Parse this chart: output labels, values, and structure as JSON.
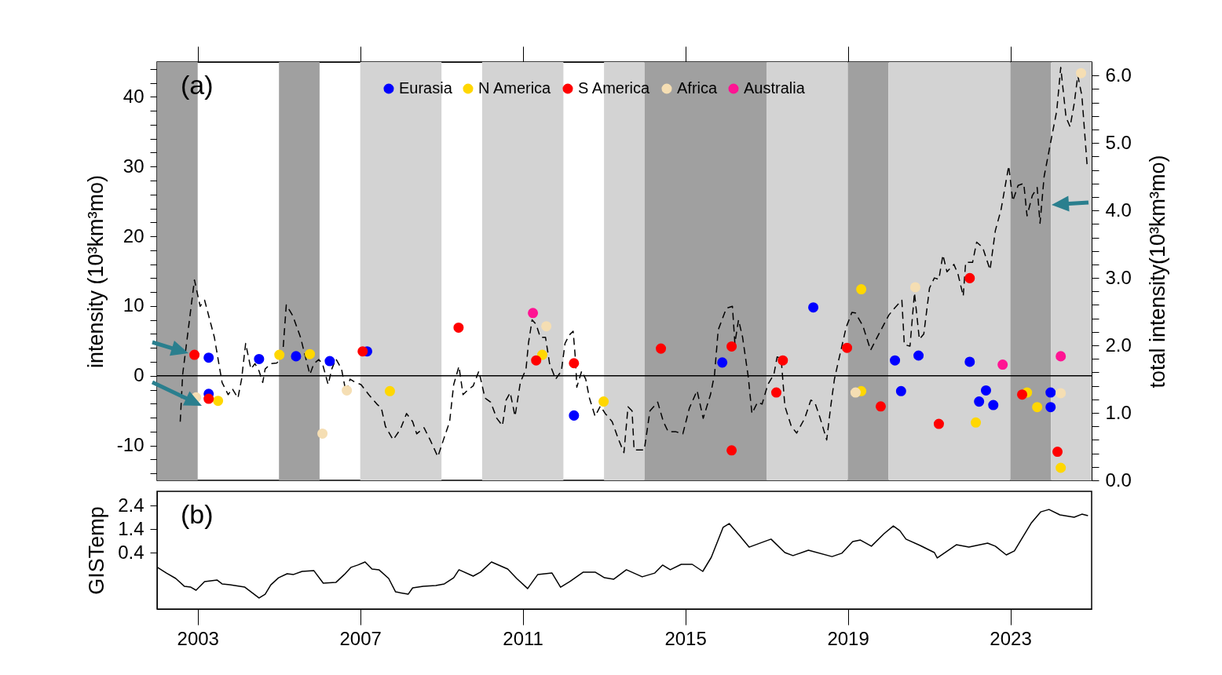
{
  "chart_data": [
    {
      "type": "scatter",
      "marker": "circle",
      "grid": false,
      "legend": "top",
      "tick_labels": "y",
      "ylabel": "intensity (10³km³mo)",
      "y2label": "total intensity(10³km³mo)",
      "annotations": [
        "(a)"
      ],
      "xlim": [
        2002,
        2025
      ],
      "xticks": [
        2003,
        2007,
        2011,
        2015,
        2019,
        2023
      ],
      "ylim": [
        -15,
        45
      ],
      "yticks": [
        {
          "value": -14,
          "label": null
        },
        {
          "value": -12,
          "label": null
        },
        -10,
        {
          "value": -8,
          "label": null
        },
        {
          "value": -6,
          "label": null
        },
        {
          "value": -4,
          "label": null
        },
        {
          "value": -2,
          "label": null
        },
        0,
        {
          "value": 2,
          "label": null
        },
        {
          "value": 4,
          "label": null
        },
        {
          "value": 6,
          "label": null
        },
        {
          "value": 8,
          "label": null
        },
        10,
        {
          "value": 12,
          "label": null
        },
        {
          "value": 14,
          "label": null
        },
        {
          "value": 16,
          "label": null
        },
        {
          "value": 18,
          "label": null
        },
        20,
        {
          "value": 22,
          "label": null
        },
        {
          "value": 24,
          "label": null
        },
        {
          "value": 26,
          "label": null
        },
        {
          "value": 28,
          "label": null
        },
        30,
        {
          "value": 32,
          "label": null
        },
        {
          "value": 34,
          "label": null
        },
        {
          "value": 36,
          "label": null
        },
        {
          "value": 38,
          "label": null
        },
        40,
        {
          "value": 42,
          "label": null
        },
        {
          "value": 44,
          "label": null
        }
      ],
      "y2lim": [
        0,
        6.2
      ],
      "y2ticks": [
        {
          "value": 0,
          "label": "0.0"
        },
        {
          "value": 0.2,
          "label": null
        },
        {
          "value": 0.4,
          "label": null
        },
        {
          "value": 0.6,
          "label": null
        },
        {
          "value": 0.8,
          "label": null
        },
        {
          "value": 1,
          "label": "1.0"
        },
        {
          "value": 1.2,
          "label": null
        },
        {
          "value": 1.4,
          "label": null
        },
        {
          "value": 1.6,
          "label": null
        },
        {
          "value": 1.8,
          "label": null
        },
        {
          "value": 2,
          "label": "2.0"
        },
        {
          "value": 2.2,
          "label": null
        },
        {
          "value": 2.4,
          "label": null
        },
        {
          "value": 2.6,
          "label": null
        },
        {
          "value": 2.8,
          "label": null
        },
        {
          "value": 3,
          "label": "3.0"
        },
        {
          "value": 3.2,
          "label": null
        },
        {
          "value": 3.4,
          "label": null
        },
        {
          "value": 3.6,
          "label": null
        },
        {
          "value": 3.8,
          "label": null
        },
        {
          "value": 4,
          "label": "4.0"
        },
        {
          "value": 4.2,
          "label": null
        },
        {
          "value": 4.4,
          "label": null
        },
        {
          "value": 4.6,
          "label": null
        },
        {
          "value": 4.8,
          "label": null
        },
        {
          "value": 5,
          "label": "5.0"
        },
        {
          "value": 5.2,
          "label": null
        },
        {
          "value": 5.4,
          "label": null
        },
        {
          "value": 5.6,
          "label": null
        },
        {
          "value": 5.8,
          "label": null
        },
        {
          "value": 6,
          "label": "6.0"
        }
      ],
      "bands": [
        {
          "axis": "x",
          "from": 2002,
          "to": 2003,
          "color": "#a0a0a0"
        },
        {
          "axis": "x",
          "from": 2005,
          "to": 2006,
          "color": "#a0a0a0"
        },
        {
          "axis": "x",
          "from": 2007,
          "to": 2009,
          "color": "#d3d3d3"
        },
        {
          "axis": "x",
          "from": 2010,
          "to": 2012,
          "color": "#d3d3d3"
        },
        {
          "axis": "x",
          "from": 2013,
          "to": 2014,
          "color": "#d3d3d3"
        },
        {
          "axis": "x",
          "from": 2014,
          "to": 2017,
          "color": "#a0a0a0"
        },
        {
          "axis": "x",
          "from": 2017,
          "to": 2019,
          "color": "#d3d3d3"
        },
        {
          "axis": "x",
          "from": 2019,
          "to": 2020,
          "color": "#a0a0a0"
        },
        {
          "axis": "x",
          "from": 2020,
          "to": 2023,
          "color": "#d3d3d3"
        },
        {
          "axis": "x",
          "from": 2023,
          "to": 2024,
          "color": "#a0a0a0"
        },
        {
          "axis": "x",
          "from": 2024,
          "to": 2025,
          "color": "#d3d3d3"
        }
      ],
      "ref_lines": [
        {
          "axis": "y",
          "value": 0,
          "color": "#000000"
        }
      ],
      "series": [
        {
          "type": "line",
          "axis": "y2",
          "color": "#000000",
          "line_style": "dashed",
          "marker": "none",
          "x": [
            2002.57,
            2002.63,
            2002.92,
            2003.06,
            2003.17,
            2003.41,
            2003.6,
            2003.75,
            2003.85,
            2003.99,
            2004.08,
            2004.18,
            2004.31,
            2004.41,
            2004.51,
            2004.6,
            2004.66,
            2004.8,
            2004.95,
            2005.09,
            2005.18,
            2005.34,
            2005.53,
            2005.76,
            2005.86,
            2005.98,
            2006.07,
            2006.21,
            2006.3,
            2006.4,
            2006.54,
            2006.65,
            2006.75,
            2006.88,
            2007.02,
            2007.21,
            2007.41,
            2007.52,
            2007.62,
            2007.81,
            2007.99,
            2008.14,
            2008.29,
            2008.39,
            2008.57,
            2008.72,
            2008.91,
            2009.07,
            2009.2,
            2009.3,
            2009.43,
            2009.53,
            2009.65,
            2009.78,
            2009.92,
            2010.07,
            2010.21,
            2010.36,
            2010.5,
            2010.59,
            2010.69,
            2010.81,
            2010.94,
            2011.08,
            2011.14,
            2011.23,
            2011.33,
            2011.43,
            2011.56,
            2011.66,
            2011.81,
            2011.95,
            2012.04,
            2012.14,
            2012.24,
            2012.3,
            2012.33,
            2012.45,
            2012.55,
            2012.64,
            2012.78,
            2012.91,
            2013.03,
            2013.2,
            2013.36,
            2013.49,
            2013.59,
            2013.69,
            2013.74,
            2013.99,
            2014.13,
            2014.32,
            2014.46,
            2014.58,
            2014.77,
            2014.94,
            2015.1,
            2015.29,
            2015.44,
            2015.62,
            2015.72,
            2015.81,
            2016.01,
            2016.16,
            2016.22,
            2016.31,
            2016.41,
            2016.55,
            2016.64,
            2016.78,
            2016.89,
            2017.03,
            2017.18,
            2017.26,
            2017.36,
            2017.45,
            2017.61,
            2017.74,
            2017.94,
            2018.09,
            2018.19,
            2018.32,
            2018.48,
            2018.58,
            2018.67,
            2018.77,
            2018.96,
            2019.1,
            2019.19,
            2019.37,
            2019.56,
            2019.73,
            2019.87,
            2020.01,
            2020.16,
            2020.33,
            2020.39,
            2020.53,
            2020.64,
            2020.76,
            2020.87,
            2021.01,
            2021.13,
            2021.24,
            2021.34,
            2021.44,
            2021.61,
            2021.71,
            2021.84,
            2021.9,
            2022.07,
            2022.17,
            2022.32,
            2022.5,
            2022.63,
            2022.77,
            2022.96,
            2023.06,
            2023.19,
            2023.33,
            2023.41,
            2023.54,
            2023.66,
            2023.73,
            2023.83,
            2024.02,
            2024.14,
            2024.24,
            2024.37,
            2024.47,
            2024.57,
            2024.66,
            2024.76,
            2024.89
          ],
          "values": [
            0.87,
            1.57,
            2.97,
            2.58,
            2.67,
            2.12,
            1.45,
            1.27,
            1.36,
            1.22,
            1.5,
            2.03,
            1.65,
            1.73,
            1.62,
            1.45,
            1.65,
            1.73,
            1.74,
            1.85,
            2.6,
            2.44,
            2.12,
            1.57,
            1.73,
            1.79,
            1.73,
            1.42,
            1.65,
            1.8,
            1.65,
            1.3,
            1.5,
            1.45,
            1.42,
            1.27,
            1.13,
            1.07,
            0.8,
            0.6,
            0.76,
            0.99,
            0.87,
            0.69,
            0.78,
            0.6,
            0.35,
            0.64,
            0.87,
            1.42,
            1.69,
            1.27,
            1.34,
            1.4,
            1.62,
            1.22,
            1.16,
            0.92,
            0.81,
            1.19,
            1.3,
            0.95,
            1.45,
            1.65,
            2.03,
            2.38,
            2.31,
            2.12,
            2.12,
            1.73,
            1.5,
            1.62,
            2.03,
            2.15,
            2.21,
            1.77,
            1.38,
            1.62,
            1.5,
            1.22,
            0.95,
            1.1,
            0.99,
            0.87,
            0.6,
            0.41,
            1.09,
            1.03,
            0.45,
            0.45,
            1.03,
            1.16,
            0.87,
            0.72,
            0.72,
            0.69,
            1.07,
            1.33,
            0.92,
            1.27,
            1.57,
            2.23,
            2.55,
            2.58,
            2.03,
            2.38,
            2.12,
            1.53,
            0.99,
            1.16,
            1.13,
            1.42,
            1.57,
            1.83,
            1.8,
            1.1,
            0.8,
            0.7,
            0.92,
            1.19,
            1.15,
            0.92,
            0.6,
            1.1,
            1.5,
            1.77,
            2.27,
            2.49,
            2.48,
            2.29,
            1.93,
            2.13,
            2.29,
            2.45,
            2.56,
            2.67,
            2.01,
            1.99,
            2.78,
            2.09,
            2.17,
            2.85,
            3.0,
            2.98,
            3.34,
            3.09,
            3.2,
            3.06,
            2.73,
            3.23,
            3.23,
            3.53,
            3.45,
            3.12,
            3.7,
            4.01,
            4.66,
            4.14,
            4.37,
            4.4,
            3.92,
            4.22,
            4.34,
            3.81,
            4.5,
            5.1,
            5.47,
            6.12,
            5.38,
            5.24,
            5.58,
            6.0,
            5.7,
            4.66
          ]
        },
        {
          "name": "Eurasia",
          "color": "#0000ff",
          "x": [
            2003.27,
            2003.27,
            2004.51,
            2005.42,
            2006.25,
            2007.17,
            2012.26,
            2015.91,
            2018.15,
            2020.16,
            2020.31,
            2020.74,
            2022.0,
            2022.23,
            2022.4,
            2022.58,
            2023.99,
            2023.99
          ],
          "values": [
            2.6,
            -2.6,
            2.4,
            2.8,
            2.1,
            3.5,
            -5.7,
            1.9,
            9.8,
            2.2,
            -2.2,
            2.9,
            2.0,
            -3.7,
            -2.1,
            -4.2,
            -2.4,
            -4.5
          ]
        },
        {
          "name": "N America",
          "color": "#ffd700",
          "x": [
            2003.5,
            2005.01,
            2005.76,
            2007.73,
            2011.48,
            2012.99,
            2019.33,
            2019.33,
            2022.15,
            2023.41,
            2023.66,
            2024.24
          ],
          "values": [
            -3.6,
            3.0,
            3.1,
            -2.2,
            3.0,
            -3.7,
            12.4,
            -2.2,
            -6.7,
            -2.4,
            -4.5,
            -13.2
          ]
        },
        {
          "name": "S America",
          "color": "#ff0000",
          "x": [
            2002.92,
            2003.27,
            2007.06,
            2009.42,
            2011.33,
            2012.26,
            2014.4,
            2016.14,
            2016.14,
            2017.24,
            2017.4,
            2018.98,
            2019.81,
            2021.24,
            2022.0,
            2023.29,
            2024.16
          ],
          "values": [
            3.0,
            -3.3,
            3.5,
            6.9,
            2.2,
            1.8,
            3.9,
            4.2,
            -10.7,
            -2.4,
            2.2,
            4.0,
            -4.4,
            -6.9,
            14.0,
            -2.7,
            -10.9
          ]
        },
        {
          "name": "Africa",
          "color": "#f5deb3",
          "x": [
            2002.96,
            2006.07,
            2006.67,
            2011.58,
            2019.19,
            2020.66,
            2024.24,
            2024.74
          ],
          "values": [
            -3.1,
            -8.3,
            -2.1,
            7.1,
            -2.4,
            12.7,
            -2.5,
            43.4
          ]
        },
        {
          "name": "Australia",
          "color": "#ff1493",
          "x": [
            2011.25,
            2022.81,
            2024.24
          ],
          "values": [
            9.0,
            1.6,
            2.8
          ]
        }
      ]
    },
    {
      "type": "line",
      "grid": false,
      "ylabel": "GISTemp",
      "annotations": [
        "(b)"
      ],
      "xlim": [
        2002,
        2025
      ],
      "xticks": [
        2003,
        2007,
        2011,
        2015,
        2019,
        2023
      ],
      "ylim": [
        -2,
        3
      ],
      "yticks": [
        0.4,
        1.4,
        2.4
      ],
      "series": [
        {
          "color": "#000000",
          "x": [
            2002.01,
            2002.23,
            2002.46,
            2002.67,
            2002.83,
            2002.96,
            2003.17,
            2003.48,
            2003.6,
            2003.79,
            2004.16,
            2004.51,
            2004.66,
            2004.8,
            2004.99,
            2005.2,
            2005.36,
            2005.57,
            2005.86,
            2006.09,
            2006.4,
            2006.61,
            2006.77,
            2006.94,
            2007.12,
            2007.29,
            2007.46,
            2007.7,
            2007.87,
            2008.18,
            2008.29,
            2008.55,
            2008.86,
            2009.07,
            2009.3,
            2009.43,
            2009.78,
            2009.96,
            2010.23,
            2010.63,
            2010.85,
            2011.12,
            2011.37,
            2011.72,
            2011.93,
            2012.16,
            2012.49,
            2012.78,
            2013.01,
            2013.24,
            2013.55,
            2013.94,
            2014.25,
            2014.44,
            2014.63,
            2014.9,
            2015.17,
            2015.43,
            2015.64,
            2015.93,
            2016.08,
            2016.33,
            2016.57,
            2016.95,
            2017.11,
            2017.45,
            2017.65,
            2018.03,
            2018.61,
            2018.85,
            2019.12,
            2019.31,
            2019.58,
            2019.89,
            2020.12,
            2020.28,
            2020.43,
            2020.78,
            2021.13,
            2021.2,
            2021.67,
            2021.98,
            2022.44,
            2022.63,
            2022.9,
            2023.1,
            2023.52,
            2023.75,
            2023.95,
            2024.22,
            2024.57,
            2024.76,
            2024.91
          ],
          "values": [
            -0.23,
            -0.47,
            -0.7,
            -1.03,
            -1.07,
            -1.2,
            -0.83,
            -0.77,
            -0.93,
            -0.97,
            -1.07,
            -1.53,
            -1.37,
            -0.97,
            -0.67,
            -0.5,
            -0.53,
            -0.4,
            -0.37,
            -0.9,
            -0.87,
            -0.53,
            -0.23,
            -0.13,
            0.0,
            -0.3,
            -0.33,
            -0.7,
            -1.27,
            -1.37,
            -1.1,
            -1.03,
            -1.0,
            -0.93,
            -0.67,
            -0.33,
            -0.6,
            -0.43,
            0.0,
            -0.3,
            -0.7,
            -1.13,
            -0.53,
            -0.47,
            -1.07,
            -0.83,
            -0.43,
            -0.43,
            -0.67,
            -0.73,
            -0.33,
            -0.63,
            -0.47,
            -0.13,
            -0.33,
            -0.1,
            -0.1,
            -0.4,
            0.2,
            1.47,
            1.63,
            1.13,
            0.63,
            0.87,
            0.97,
            0.4,
            0.27,
            0.5,
            0.23,
            0.37,
            0.87,
            0.93,
            0.67,
            1.2,
            1.53,
            1.33,
            0.97,
            0.7,
            0.4,
            0.17,
            0.73,
            0.63,
            0.8,
            0.67,
            0.3,
            0.47,
            1.67,
            2.13,
            2.23,
            2.0,
            1.9,
            2.03,
            1.97
          ]
        }
      ]
    }
  ]
}
